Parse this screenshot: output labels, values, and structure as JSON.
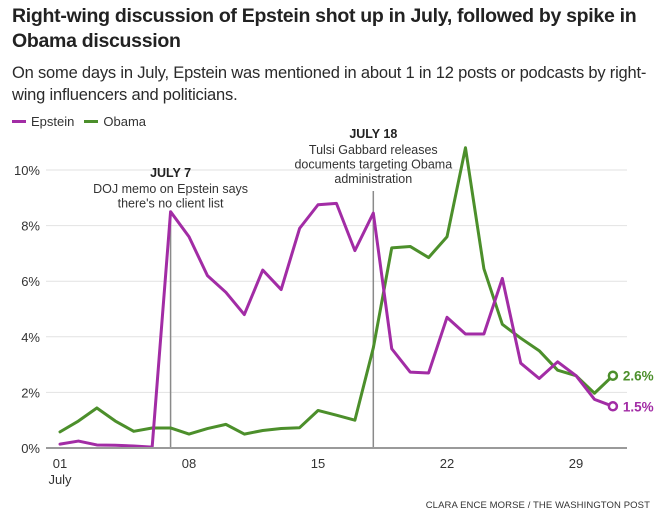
{
  "title": "Right-wing discussion of Epstein shot up in July, followed by spike in Obama discussion",
  "subtitle": "On some days in July, Epstein was mentioned in about 1 in 12 posts or podcasts by right-wing influencers and politicians.",
  "credit": "CLARA ENCE MORSE / THE WASHINGTON POST",
  "colors": {
    "epstein": "#a22ca5",
    "obama": "#4c8f2b",
    "grid": "#e2e2e2",
    "axis": "#9a9a9a",
    "annotation_line": "#8a8a8a"
  },
  "chart_data": {
    "type": "line",
    "title": "Right-wing discussion of Epstein shot up in July, followed by spike in Obama discussion",
    "xlabel": "",
    "ylabel": "",
    "x": [
      1,
      2,
      3,
      4,
      5,
      6,
      7,
      8,
      9,
      10,
      11,
      12,
      13,
      14,
      15,
      16,
      17,
      18,
      19,
      20,
      21,
      22,
      23,
      24,
      25,
      26,
      27,
      28,
      29,
      30,
      31
    ],
    "xlim": [
      1,
      31
    ],
    "ylim": [
      0,
      10.8
    ],
    "x_ticks": [
      {
        "value": 1,
        "label": "01",
        "sublabel": "July"
      },
      {
        "value": 8,
        "label": "08"
      },
      {
        "value": 15,
        "label": "15"
      },
      {
        "value": 22,
        "label": "22"
      },
      {
        "value": 29,
        "label": "29"
      }
    ],
    "y_ticks": [
      {
        "value": 0,
        "label": "0%"
      },
      {
        "value": 2,
        "label": "2%"
      },
      {
        "value": 4,
        "label": "4%"
      },
      {
        "value": 6,
        "label": "6%"
      },
      {
        "value": 8,
        "label": "8%"
      },
      {
        "value": 10,
        "label": "10%"
      }
    ],
    "grid": true,
    "legend": "top-left",
    "series": [
      {
        "name": "Epstein",
        "color": "#a22ca5",
        "values": [
          0.14,
          0.25,
          0.11,
          0.1,
          0.07,
          0.03,
          8.5,
          7.6,
          6.2,
          5.6,
          4.8,
          6.4,
          5.7,
          7.9,
          8.75,
          8.8,
          7.1,
          8.45,
          3.57,
          2.73,
          2.7,
          4.7,
          4.1,
          4.1,
          6.1,
          3.05,
          2.5,
          3.1,
          2.6,
          1.75,
          1.5
        ],
        "end_label": "1.5%"
      },
      {
        "name": "Obama",
        "color": "#4c8f2b",
        "values": [
          0.58,
          0.97,
          1.44,
          0.97,
          0.6,
          0.72,
          0.72,
          0.5,
          0.7,
          0.85,
          0.5,
          0.63,
          0.7,
          0.73,
          1.35,
          1.18,
          1.0,
          3.6,
          7.2,
          7.25,
          6.85,
          7.6,
          10.8,
          6.45,
          4.45,
          3.95,
          3.5,
          2.8,
          2.6,
          1.97,
          2.6
        ],
        "end_label": "2.6%"
      }
    ],
    "annotations": [
      {
        "x": 7,
        "heading": "JULY 7",
        "lines": [
          "DOJ memo on Epstein says",
          "there's no client list"
        ]
      },
      {
        "x": 18,
        "heading": "JULY 18",
        "lines": [
          "Tulsi Gabbard releases",
          "documents targeting Obama",
          "administration"
        ]
      }
    ]
  }
}
